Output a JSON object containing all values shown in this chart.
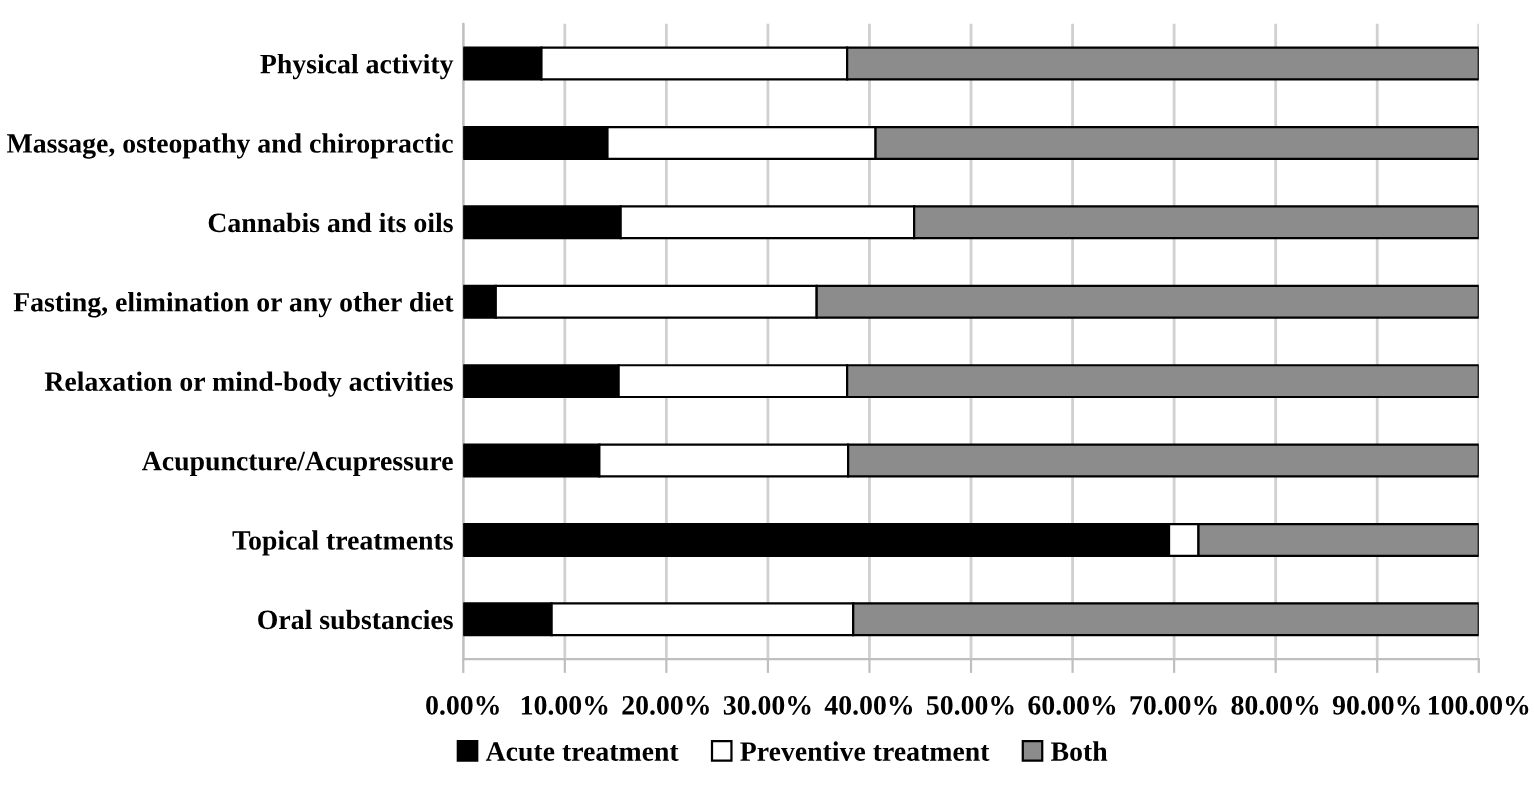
{
  "chart_data": {
    "type": "bar",
    "orientation": "horizontal",
    "stacked": true,
    "categories": [
      "Physical activity",
      "Massage, osteopathy and chiropractic",
      "Cannabis and its oils",
      "Fasting, elimination or any other diet",
      "Relaxation or mind-body activities",
      "Acupuncture/Acupressure",
      "Topical treatments",
      "Oral substancies"
    ],
    "series": [
      {
        "name": "Acute treatment",
        "color": "#000000",
        "values": [
          7.7,
          14.2,
          15.5,
          3.2,
          15.3,
          13.4,
          69.5,
          8.7
        ]
      },
      {
        "name": "Preventive treatment",
        "color": "#ffffff",
        "values": [
          30.1,
          26.4,
          28.9,
          31.6,
          22.5,
          24.5,
          2.9,
          29.7
        ]
      },
      {
        "name": "Both",
        "color": "#8c8c8c",
        "values": [
          62.2,
          59.4,
          55.6,
          65.2,
          62.2,
          62.1,
          27.6,
          61.6
        ]
      }
    ],
    "xlim": [
      0,
      100
    ],
    "xticks": [
      {
        "value": 0,
        "label": "0.00%"
      },
      {
        "value": 10,
        "label": "10.00%"
      },
      {
        "value": 20,
        "label": "20.00%"
      },
      {
        "value": 30,
        "label": "30.00%"
      },
      {
        "value": 40,
        "label": "40.00%"
      },
      {
        "value": 50,
        "label": "50.00%"
      },
      {
        "value": 60,
        "label": "60.00%"
      },
      {
        "value": 70,
        "label": "70.00%"
      },
      {
        "value": 80,
        "label": "80.00%"
      },
      {
        "value": 90,
        "label": "90.00%"
      },
      {
        "value": 100,
        "label": "100.00%"
      }
    ],
    "grid": "x",
    "legend": "bottom"
  }
}
